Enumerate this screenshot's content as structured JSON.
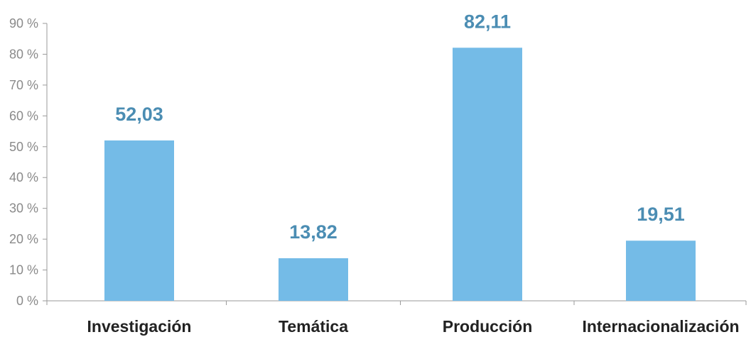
{
  "chart_data": {
    "type": "bar",
    "categories": [
      "Investigación",
      "Temática",
      "Producción",
      "Internacionalización"
    ],
    "values": [
      52.03,
      13.82,
      82.11,
      19.51
    ],
    "data_labels": [
      "52,03",
      "13,82",
      "82,11",
      "19,51"
    ],
    "yticks": [
      0,
      10,
      20,
      30,
      40,
      50,
      60,
      70,
      80,
      90
    ],
    "ytick_labels": [
      "0 %",
      "10 %",
      "20 %",
      "30 %",
      "40 %",
      "50 %",
      "60 %",
      "70 %",
      "80 %",
      "90 %"
    ],
    "ylim": [
      0,
      90
    ],
    "grid": false,
    "legend": false,
    "colors": {
      "bar": "#74bbe7",
      "data_label": "#4b8db3"
    }
  }
}
